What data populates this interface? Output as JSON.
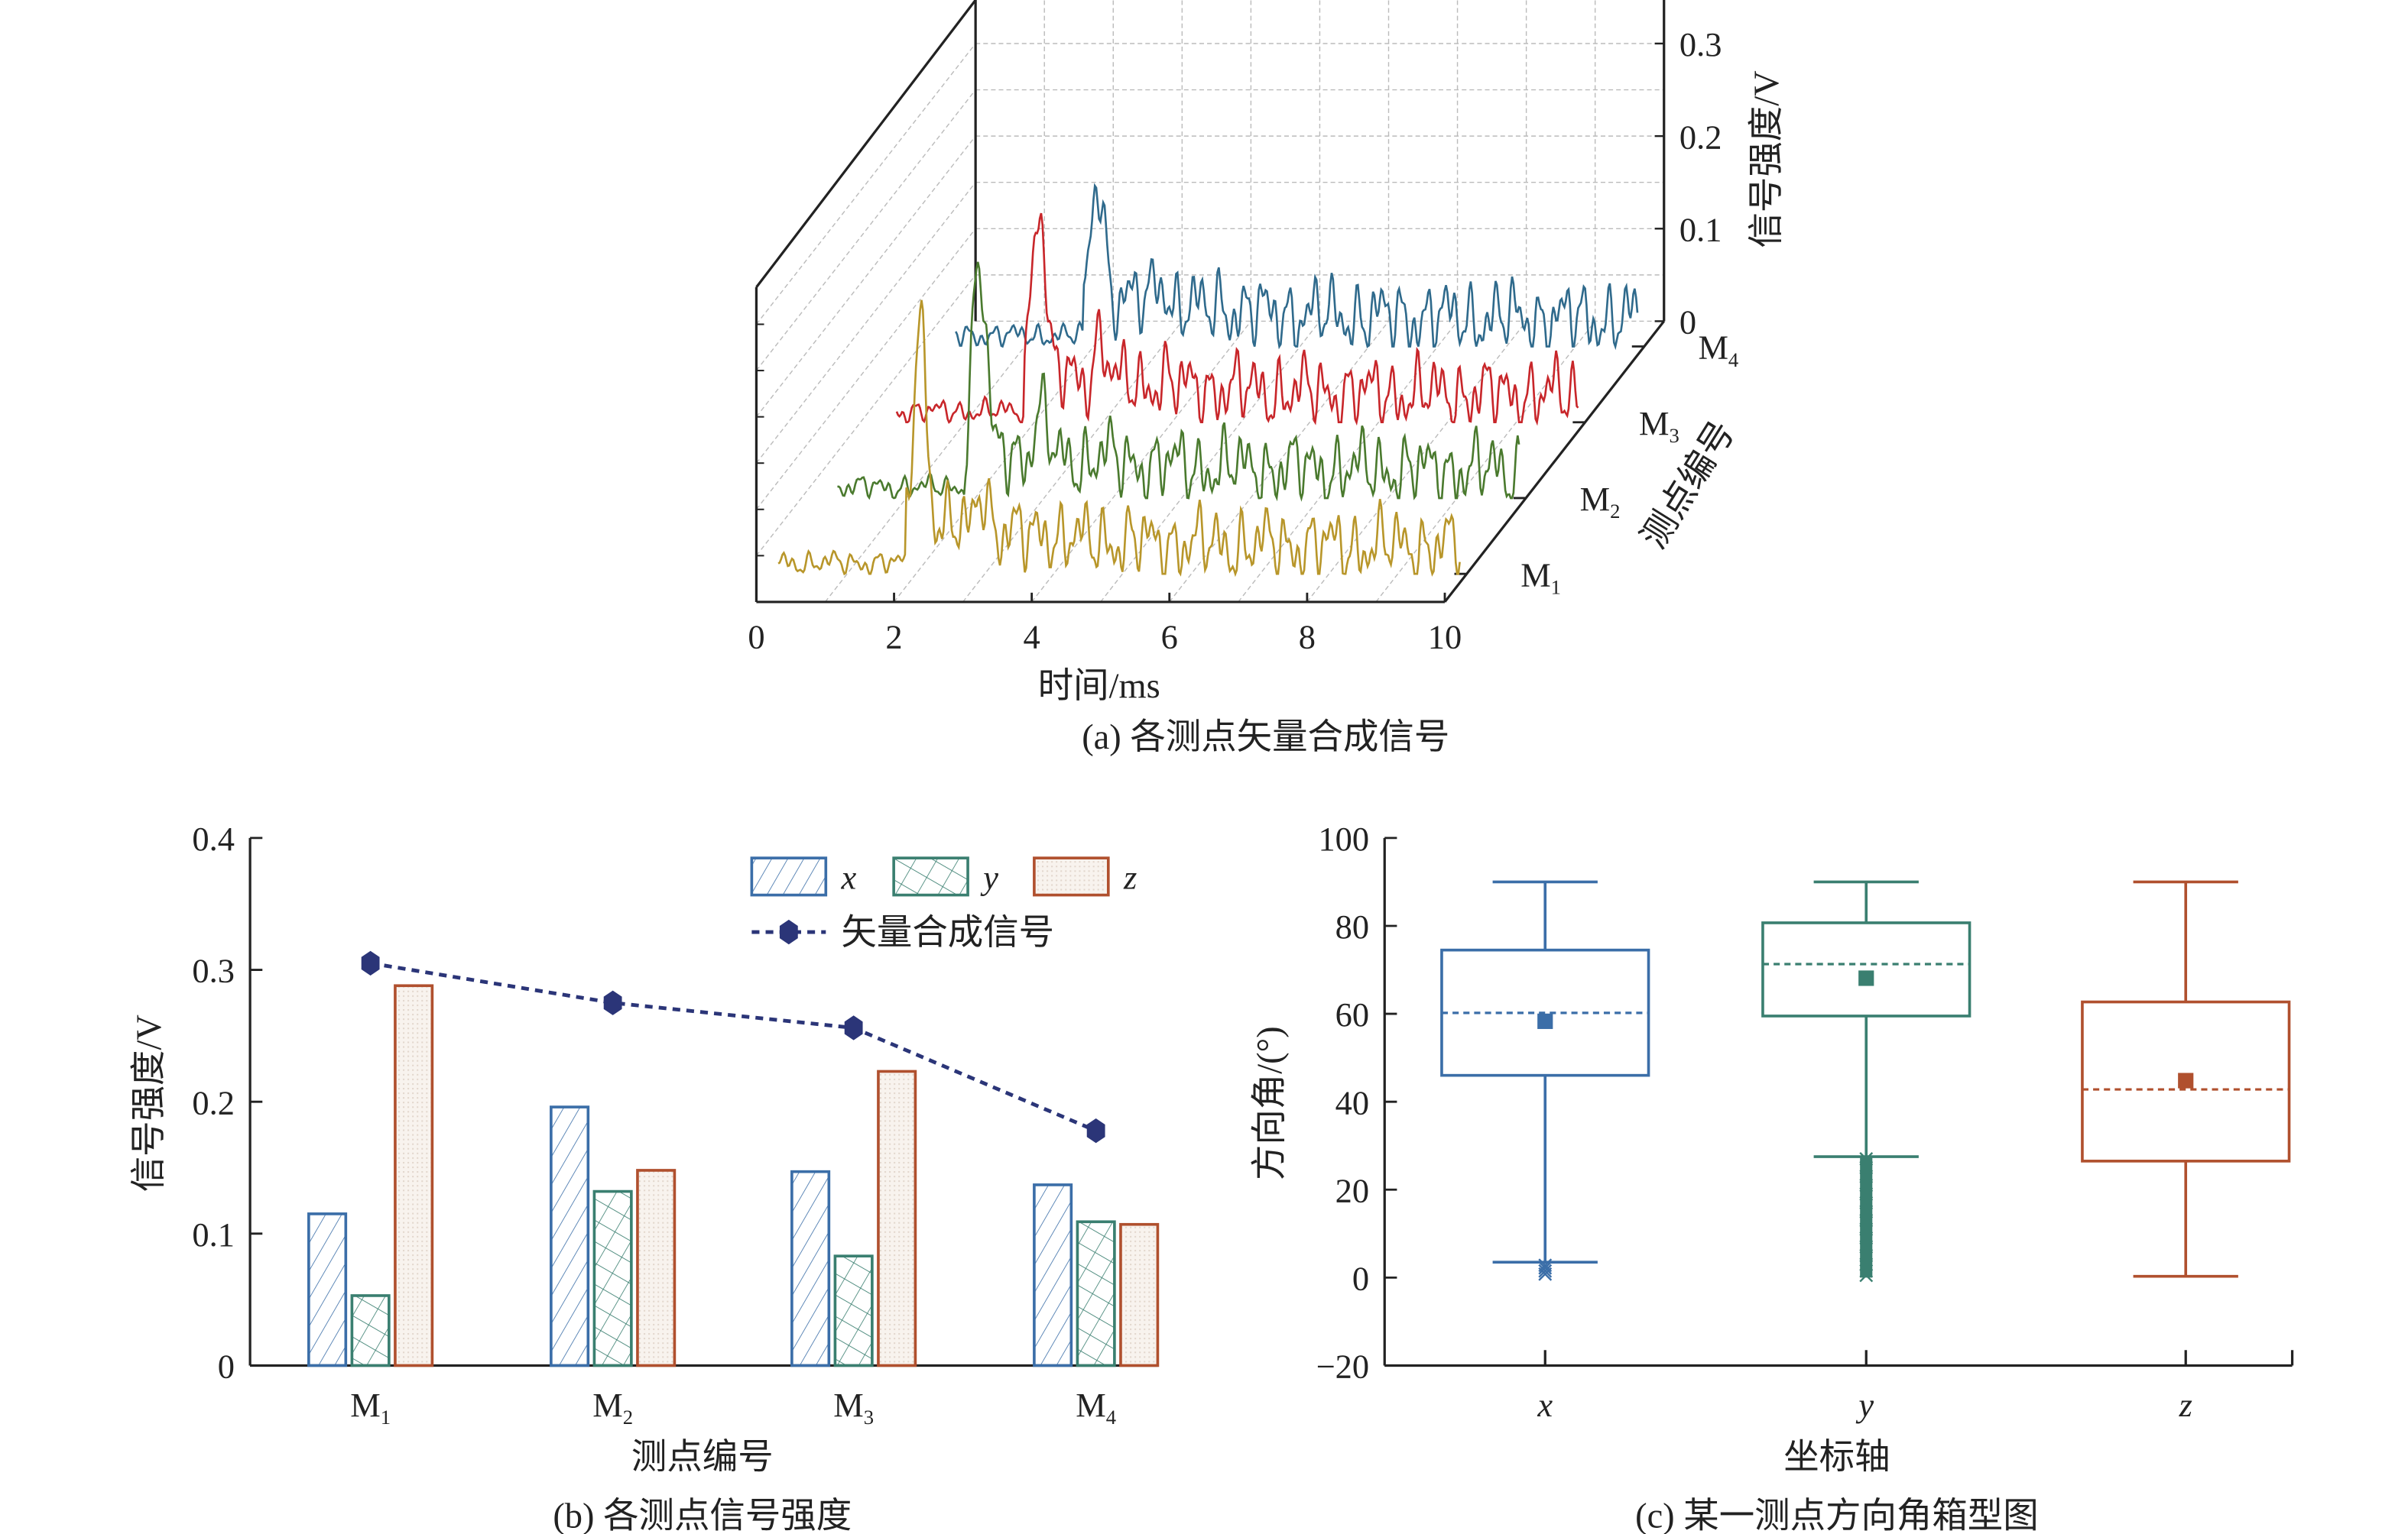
{
  "colors": {
    "x": "#3b6ea8",
    "y": "#3a7f70",
    "z": "#b0502e",
    "vector": "#2b3578",
    "M1": "#b8962a",
    "M2": "#4a7a2e",
    "M3": "#c8262a",
    "M4": "#2f6a8c"
  },
  "chart_data": [
    {
      "type": "line",
      "view": "3d-waterfall",
      "caption": "(a) 各测点矢量合成信号",
      "xlabel": "时间/ms",
      "ylabel": "测点编号",
      "zlabel": "信号强度/V",
      "xlim": [
        0,
        10
      ],
      "zlim": [
        0,
        0.3
      ],
      "x_ticks": [
        "0",
        "2",
        "4",
        "6",
        "8",
        "10"
      ],
      "z_ticks": [
        "0",
        "0.1",
        "0.2",
        "0.3"
      ],
      "y_ticks": [
        {
          "main": "M",
          "sub": "1"
        },
        {
          "main": "M",
          "sub": "2"
        },
        {
          "main": "M",
          "sub": "3"
        },
        {
          "main": "M",
          "sub": "4"
        }
      ],
      "series": [
        {
          "name": "M1",
          "peak": 0.305,
          "color_key": "M1"
        },
        {
          "name": "M2",
          "peak": 0.275,
          "color_key": "M2"
        },
        {
          "name": "M3",
          "peak": 0.256,
          "color_key": "M3"
        },
        {
          "name": "M4",
          "peak": 0.178,
          "color_key": "M4"
        }
      ],
      "grid": true
    },
    {
      "type": "bar",
      "caption": "(b) 各测点信号强度",
      "xlabel": "测点编号",
      "ylabel": "信号强度/V",
      "ylim": [
        0,
        0.4
      ],
      "y_ticks": [
        "0",
        "0.1",
        "0.2",
        "0.3",
        "0.4"
      ],
      "categories": [
        {
          "main": "M",
          "sub": "1"
        },
        {
          "main": "M",
          "sub": "2"
        },
        {
          "main": "M",
          "sub": "3"
        },
        {
          "main": "M",
          "sub": "4"
        }
      ],
      "series": [
        {
          "name": "x",
          "values": [
            0.115,
            0.196,
            0.147,
            0.137
          ]
        },
        {
          "name": "y",
          "values": [
            0.053,
            0.132,
            0.083,
            0.109
          ]
        },
        {
          "name": "z",
          "values": [
            0.288,
            0.148,
            0.223,
            0.107
          ]
        }
      ],
      "line_series": {
        "name": "矢量合成信号",
        "values": [
          0.305,
          0.275,
          0.256,
          0.178
        ]
      },
      "legend": "top-right"
    },
    {
      "type": "box",
      "caption": "(c) 某一测点方向角箱型图",
      "xlabel": "坐标轴",
      "ylabel": "方向角/(°)",
      "ylim": [
        -20,
        100
      ],
      "y_ticks": [
        "−20",
        "0",
        "20",
        "40",
        "60",
        "80",
        "100"
      ],
      "categories": [
        "x",
        "y",
        "z"
      ],
      "boxes": [
        {
          "name": "x",
          "whisker_high": 90,
          "q3": 74.5,
          "median": 60.2,
          "mean": 58.3,
          "q1": 46,
          "whisker_low": 3.5,
          "outliers": [
            0.8,
            1.5,
            2.2,
            2.8
          ]
        },
        {
          "name": "y",
          "whisker_high": 90,
          "q3": 80.7,
          "median": 71.3,
          "mean": 68.1,
          "q1": 59.5,
          "whisker_low": 27.5,
          "outliers": [
            0.5,
            1.5,
            3,
            5,
            7,
            9,
            11,
            13,
            15,
            17,
            19,
            21,
            23,
            25,
            27
          ]
        },
        {
          "name": "z",
          "whisker_high": 90,
          "q3": 62.7,
          "median": 42.8,
          "mean": 44.8,
          "q1": 26.5,
          "whisker_low": 0.3,
          "outliers": []
        }
      ]
    }
  ]
}
